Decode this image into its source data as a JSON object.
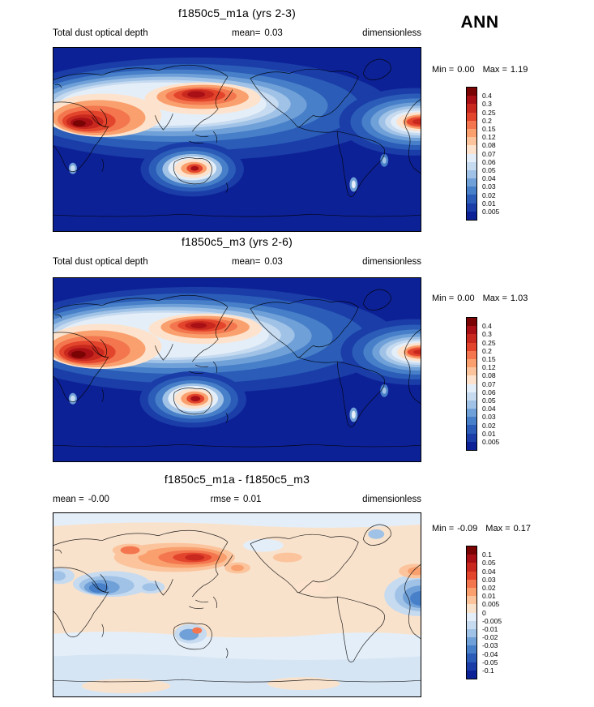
{
  "figure": {
    "season": "ANN",
    "variable": "Total dust optical depth",
    "units": "dimensionless"
  },
  "panels": [
    {
      "title": "f1850c5_m1a (yrs 2-3)",
      "left_label": "Total dust optical depth",
      "left_value": "",
      "center_label": "mean=",
      "center_value": "0.03",
      "right_label": "dimensionless",
      "min_label": "Min =",
      "min_value": "0.00",
      "max_label": "Max =",
      "max_value": "1.19",
      "colorbar": {
        "labels": [
          "0.4",
          "0.3",
          "0.25",
          "0.2",
          "0.15",
          "0.12",
          "0.08",
          "0.07",
          "0.06",
          "0.05",
          "0.04",
          "0.03",
          "0.02",
          "0.01",
          "0.005"
        ],
        "colors": [
          "#7a0403",
          "#a81016",
          "#c8281e",
          "#e2442c",
          "#f3764f",
          "#f9a06e",
          "#fbc49c",
          "#fde3cd",
          "#e4eef8",
          "#c6daf0",
          "#9fc2e6",
          "#70a0d8",
          "#477fc8",
          "#2a5cb8",
          "#1a3da8",
          "#0d2196"
        ]
      }
    },
    {
      "title": "f1850c5_m3 (yrs 2-6)",
      "left_label": "Total dust optical depth",
      "left_value": "",
      "center_label": "mean=",
      "center_value": "0.03",
      "right_label": "dimensionless",
      "min_label": "Min =",
      "min_value": "0.00",
      "max_label": "Max =",
      "max_value": "1.03",
      "colorbar": {
        "labels": [
          "0.4",
          "0.3",
          "0.25",
          "0.2",
          "0.15",
          "0.12",
          "0.08",
          "0.07",
          "0.06",
          "0.05",
          "0.04",
          "0.03",
          "0.02",
          "0.01",
          "0.005"
        ],
        "colors": [
          "#7a0403",
          "#a81016",
          "#c8281e",
          "#e2442c",
          "#f3764f",
          "#f9a06e",
          "#fbc49c",
          "#fde3cd",
          "#e4eef8",
          "#c6daf0",
          "#9fc2e6",
          "#70a0d8",
          "#477fc8",
          "#2a5cb8",
          "#1a3da8",
          "#0d2196"
        ]
      }
    },
    {
      "title": "f1850c5_m1a - f1850c5_m3",
      "left_label": "mean =",
      "left_value": "-0.00",
      "center_label": "rmse =",
      "center_value": "0.01",
      "right_label": "dimensionless",
      "min_label": "Min =",
      "min_value": "-0.09",
      "max_label": "Max =",
      "max_value": "0.17",
      "colorbar": {
        "labels": [
          "0.1",
          "0.05",
          "0.04",
          "0.03",
          "0.02",
          "0.01",
          "0.005",
          "0",
          "-0.005",
          "-0.01",
          "-0.02",
          "-0.03",
          "-0.04",
          "-0.05",
          "-0.1"
        ],
        "colors": [
          "#7a0403",
          "#a81016",
          "#c8281e",
          "#e2442c",
          "#f3764f",
          "#f9a06e",
          "#fbc49c",
          "#f9e2cc",
          "#e4eef8",
          "#c6daf0",
          "#9fc2e6",
          "#70a0d8",
          "#477fc8",
          "#2a5cb8",
          "#1a3da8",
          "#0d2196"
        ]
      }
    }
  ],
  "chart_data": [
    {
      "type": "heatmap",
      "title": "f1850c5_m1a (yrs 2-3)",
      "variable": "Total dust optical depth",
      "units": "dimensionless",
      "season": "ANN",
      "projection": "global latitude-longitude world map, Pacific-centered",
      "mean": 0.03,
      "min": 0.0,
      "max": 1.19,
      "contour_levels": [
        0.005,
        0.01,
        0.02,
        0.03,
        0.04,
        0.05,
        0.06,
        0.07,
        0.08,
        0.12,
        0.15,
        0.2,
        0.25,
        0.3,
        0.4
      ],
      "colormap": "blue (low) to dark red (high)",
      "legend_position": "right",
      "high_value_regions": [
        "North Africa / Sahara",
        "Arabian Peninsula / South Asia",
        "Central-East Asia plume",
        "Australia",
        "tropical Atlantic outflow at map edge"
      ]
    },
    {
      "type": "heatmap",
      "title": "f1850c5_m3 (yrs 2-6)",
      "variable": "Total dust optical depth",
      "units": "dimensionless",
      "season": "ANN",
      "projection": "global latitude-longitude world map, Pacific-centered",
      "mean": 0.03,
      "min": 0.0,
      "max": 1.03,
      "contour_levels": [
        0.005,
        0.01,
        0.02,
        0.03,
        0.04,
        0.05,
        0.06,
        0.07,
        0.08,
        0.12,
        0.15,
        0.2,
        0.25,
        0.3,
        0.4
      ],
      "colormap": "blue (low) to dark red (high)",
      "legend_position": "right",
      "high_value_regions": [
        "North Africa / Sahara",
        "Arabian Peninsula / South Asia",
        "Central-East Asia plume",
        "Australia",
        "tropical Atlantic outflow at map edge"
      ]
    },
    {
      "type": "heatmap",
      "title": "f1850c5_m1a - f1850c5_m3",
      "variable": "Total dust optical depth difference",
      "units": "dimensionless",
      "season": "ANN",
      "projection": "global latitude-longitude world map, Pacific-centered",
      "mean": -0.0,
      "rmse": 0.01,
      "min": -0.09,
      "max": 0.17,
      "contour_levels": [
        -0.1,
        -0.05,
        -0.04,
        -0.03,
        -0.02,
        -0.01,
        -0.005,
        0,
        0.005,
        0.01,
        0.02,
        0.03,
        0.04,
        0.05,
        0.1
      ],
      "colormap": "diverging blue (negative) to red (positive)",
      "legend_position": "right",
      "notable_regions": [
        "positive (red) over Central-East Asia",
        "negative (blue) over Middle East / South Asia",
        "negative (blue) tropical Atlantic at map edge",
        "weak negative band over Southern Ocean"
      ]
    }
  ]
}
